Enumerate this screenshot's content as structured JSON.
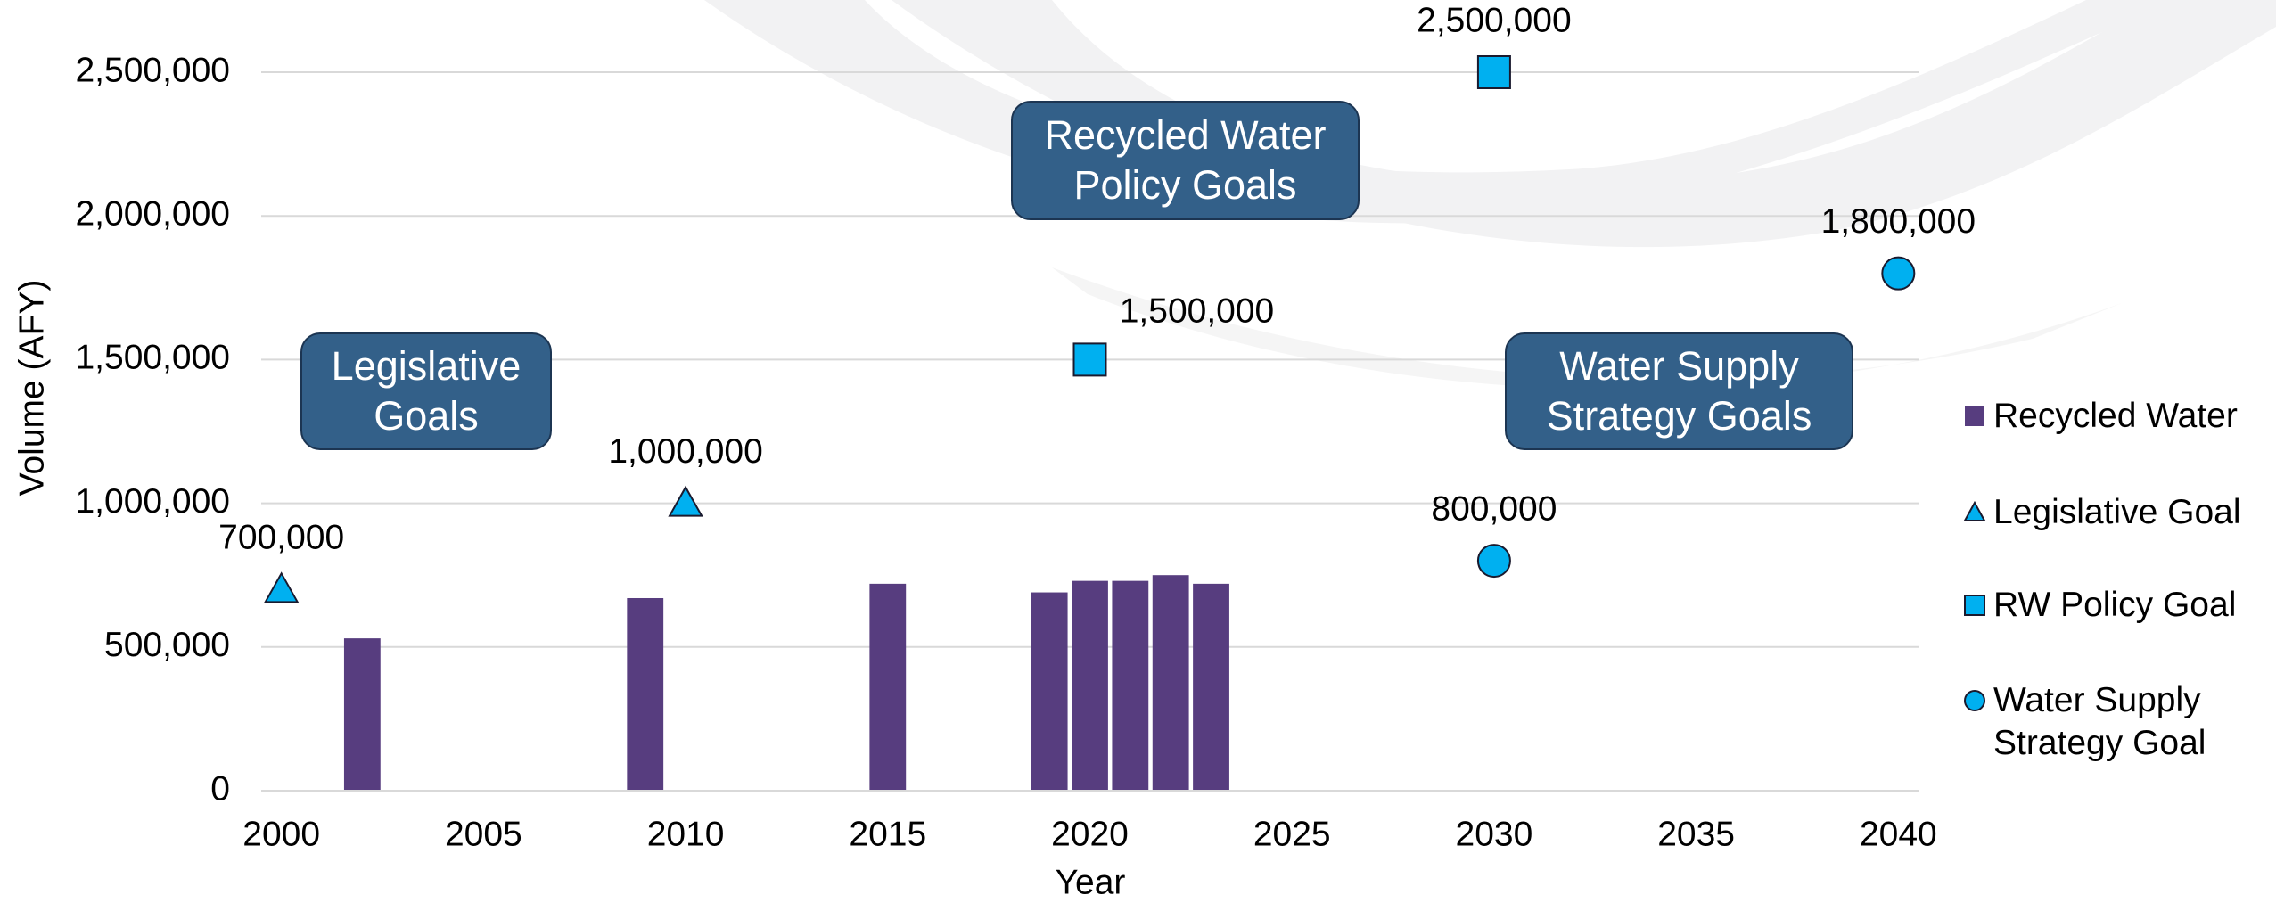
{
  "chart_data": {
    "type": "combo",
    "x_label": "Year",
    "y_label": "Volume (AFY)",
    "xlim": [
      1999.5,
      2040.5
    ],
    "xticks": [
      2000,
      2005,
      2010,
      2015,
      2020,
      2025,
      2030,
      2035,
      2040
    ],
    "ylim": [
      0,
      2500000
    ],
    "yticks": [
      0,
      {
        "value": 500000,
        "label": "500,000"
      },
      {
        "value": 1000000,
        "label": "1,000,000"
      },
      {
        "value": 1500000,
        "label": "1,500,000"
      },
      {
        "value": 2000000,
        "label": "2,000,000"
      },
      {
        "value": 2500000,
        "label": "2,500,000"
      }
    ],
    "grid": true,
    "legend": "right",
    "series": [
      {
        "name": "Recycled Water",
        "type": "bar",
        "color": "#573d7f",
        "x": [
          2002,
          2009,
          2015,
          2019,
          2020,
          2021,
          2022,
          2023
        ],
        "values": [
          530000,
          670000,
          720000,
          690000,
          730000,
          730000,
          750000,
          720000
        ]
      },
      {
        "name": "Legislative Goal",
        "type": "scatter",
        "marker": "triangle",
        "color": "#00b0f0",
        "x": [
          2000,
          2010
        ],
        "values": [
          700000,
          1000000
        ],
        "value_labels": [
          "700,000",
          "1,000,000"
        ]
      },
      {
        "name": "RW Policy Goal",
        "type": "scatter",
        "marker": "square",
        "color": "#00b0f0",
        "x": [
          2020,
          2030
        ],
        "values": [
          1500000,
          2500000
        ],
        "value_labels": [
          "1,500,000",
          "2,500,000"
        ]
      },
      {
        "name": "Water Supply Strategy Goal",
        "type": "scatter",
        "marker": "circle",
        "color": "#00b0f0",
        "x": [
          2030,
          2040
        ],
        "values": [
          800000,
          1800000
        ],
        "value_labels": [
          "800,000",
          "1,800,000"
        ]
      }
    ],
    "annotations": [
      "Legislative Goals",
      "Recycled Water Policy Goals",
      "Water Supply Strategy Goals"
    ]
  }
}
